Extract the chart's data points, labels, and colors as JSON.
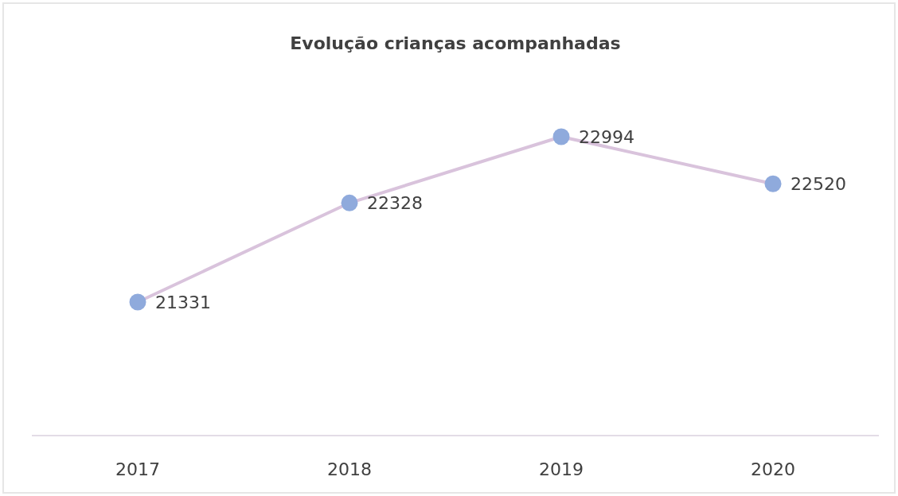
{
  "chart_data": {
    "type": "line",
    "title": "Evolução crianças acompanhadas",
    "categories": [
      "2017",
      "2018",
      "2019",
      "2020"
    ],
    "series": [
      {
        "color": "#8faadc",
        "values": [
          21331,
          22328,
          22994,
          22520
        ]
      }
    ],
    "tick_labels": "x",
    "data_labels": true,
    "marker": "circle",
    "line_style": "solid"
  }
}
